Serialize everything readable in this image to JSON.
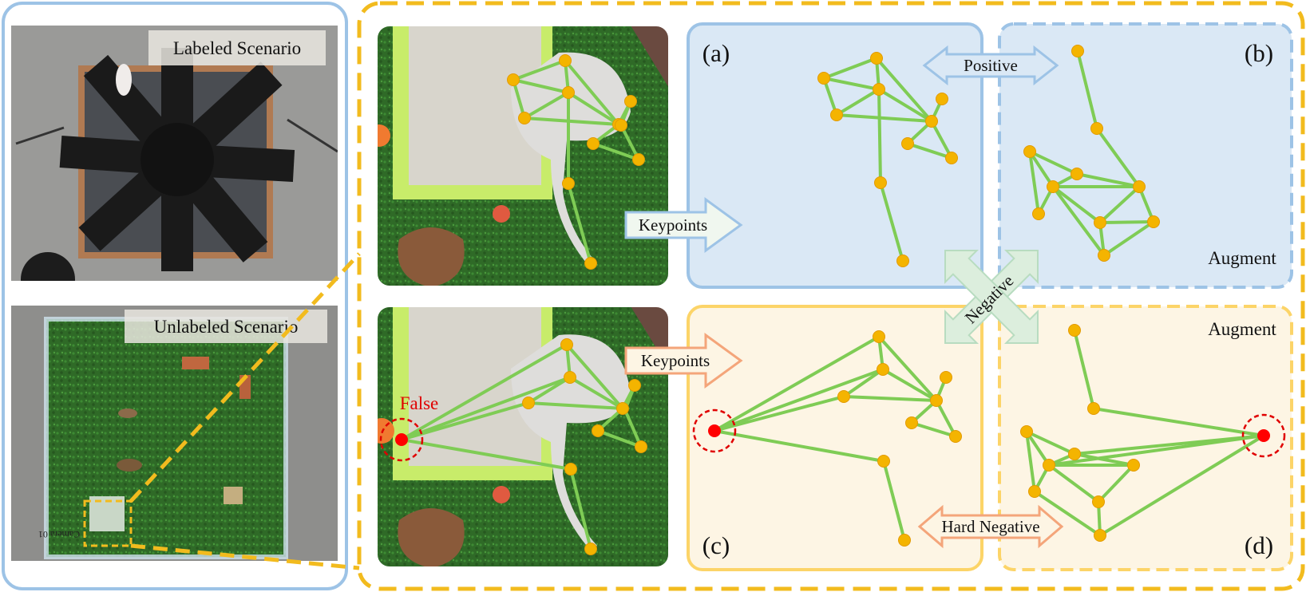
{
  "left_panel": {
    "labeled_caption": "Labeled Scenario",
    "unlabeled_caption": "Unlabeled Scenario",
    "camera_text": "Camera 01"
  },
  "panels": {
    "a": {
      "label": "(a)"
    },
    "b": {
      "label": "(b)",
      "tag": "Augment"
    },
    "c": {
      "label": "(c)"
    },
    "d": {
      "label": "(d)",
      "tag": "Augment"
    }
  },
  "arrows": {
    "keypoints_top": "Keypoints",
    "keypoints_bottom": "Keypoints",
    "positive": "Positive",
    "negative": "Negative",
    "hard_negative": "Hard Negative"
  },
  "false_label": "False",
  "colors": {
    "blue_border": "#9dc3e6",
    "blue_fill": "#dae8f5",
    "orange_border": "#f5b800",
    "orange_dashed": "#f2bb1e",
    "cream_fill": "#fdf5e4",
    "skeleton_line": "#7fcc55",
    "keypoint": "#f4b400",
    "false_keypoint": "#ff0000",
    "grass": "#2f6e2a",
    "arena_gray": "#9a9a98"
  }
}
